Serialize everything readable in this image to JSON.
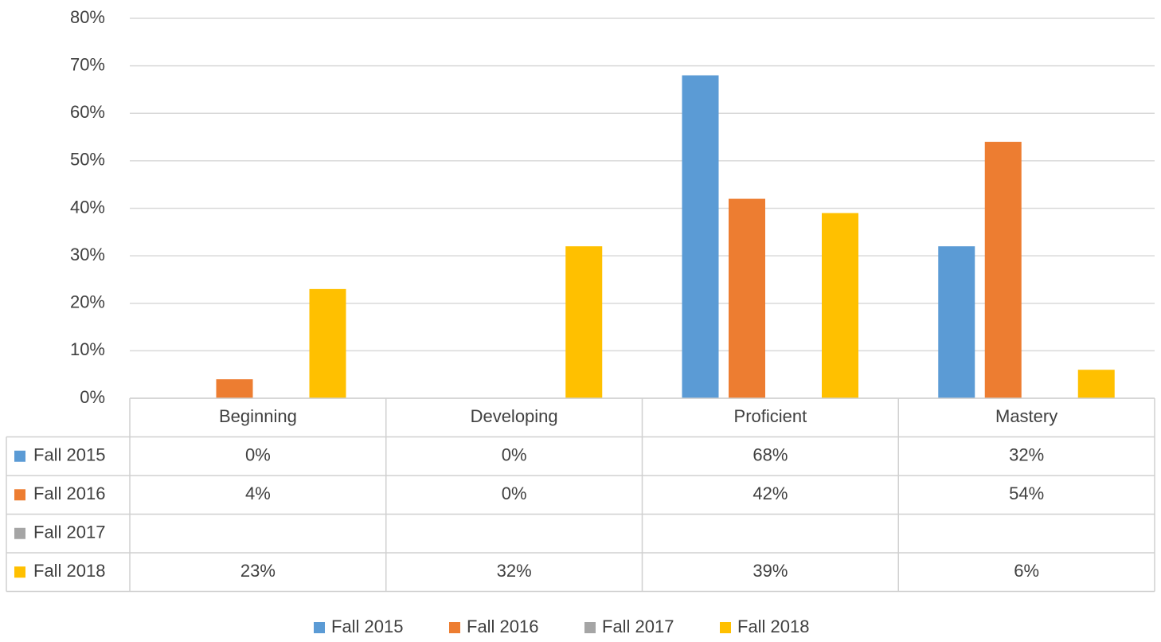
{
  "chart_data": {
    "type": "bar",
    "categories": [
      "Beginning",
      "Developing",
      "Proficient",
      "Mastery"
    ],
    "series": [
      {
        "name": "Fall 2015",
        "color": "#5b9bd5",
        "values": [
          0,
          0,
          68,
          32
        ],
        "value_labels": [
          "0%",
          "0%",
          "68%",
          "32%"
        ]
      },
      {
        "name": "Fall 2016",
        "color": "#ed7d31",
        "values": [
          4,
          0,
          42,
          54
        ],
        "value_labels": [
          "4%",
          "0%",
          "42%",
          "54%"
        ]
      },
      {
        "name": "Fall 2017",
        "color": "#a5a5a5",
        "values": [
          null,
          null,
          null,
          null
        ]
      },
      {
        "name": "Fall 2018",
        "color": "#ffc000",
        "values": [
          23,
          32,
          39,
          6
        ],
        "value_labels": [
          "23%",
          "32%",
          "39%",
          "6%"
        ]
      }
    ],
    "ylim": [
      0,
      80
    ],
    "yticks": [
      {
        "value": 0,
        "label": "0%"
      },
      {
        "value": 10,
        "label": "10%"
      },
      {
        "value": 20,
        "label": "20%"
      },
      {
        "value": 30,
        "label": "30%"
      },
      {
        "value": 40,
        "label": "40%"
      },
      {
        "value": 50,
        "label": "50%"
      },
      {
        "value": 60,
        "label": "60%"
      },
      {
        "value": 70,
        "label": "70%"
      },
      {
        "value": 80,
        "label": "80%"
      }
    ],
    "grid": true,
    "legend": "bottom",
    "data_table": true
  }
}
